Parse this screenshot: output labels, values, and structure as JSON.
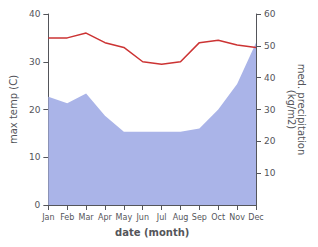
{
  "chart_data": {
    "type": "line",
    "xlabel": "date (month)",
    "ylabel": "max temp (C)",
    "y2label": "med. precipitation\n(kg/m2)",
    "categories": [
      "Jan",
      "Feb",
      "Mar",
      "Apr",
      "May",
      "Jun",
      "Jul",
      "Aug",
      "Sep",
      "Oct",
      "Nov",
      "Dec"
    ],
    "series": [
      {
        "type": "area",
        "axis": "y2",
        "color": "#aab4e8",
        "values": [
          34.0,
          32.0,
          35.0,
          28.0,
          23.0,
          23.0,
          23.0,
          23.0,
          24.0,
          30.0,
          38.0,
          51.0
        ]
      },
      {
        "type": "line",
        "color": "#cc3333",
        "values": [
          35.0,
          35.0,
          36.0,
          34.0,
          33.0,
          30.0,
          29.5,
          30.0,
          34.0,
          34.5,
          33.5,
          33.0
        ]
      }
    ],
    "ylim": [
      0,
      40
    ],
    "yticks": [
      0,
      10,
      20,
      30,
      40
    ],
    "y2lim": [
      0,
      60
    ],
    "y2ticks": [
      10,
      20,
      30,
      40,
      50,
      60
    ],
    "grid": false
  }
}
